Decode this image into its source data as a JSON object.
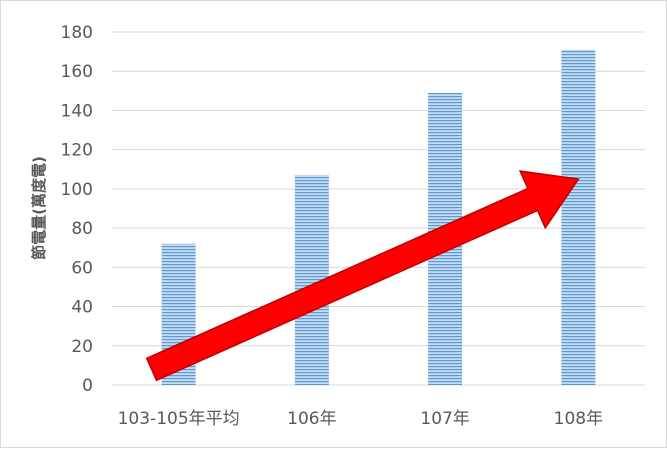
{
  "chart_data": {
    "type": "bar",
    "categories": [
      "103-105年平均",
      "106年",
      "107年",
      "108年"
    ],
    "values": [
      72,
      107,
      149,
      171
    ],
    "ylabel": "節電量(萬度電)",
    "ylim": [
      0,
      180
    ],
    "yticks": [
      0,
      20,
      40,
      60,
      80,
      100,
      120,
      140,
      160,
      180
    ],
    "grid": true,
    "legend": "none",
    "annotation": "red upward trend arrow",
    "colors": {
      "bar_fill": "#c7daf0",
      "bar_stripe": "#5b9bd5",
      "grid": "#d9d9d9",
      "axis_text": "#595959",
      "arrow_fill": "#ff0000",
      "arrow_stroke": "#c00000"
    }
  }
}
